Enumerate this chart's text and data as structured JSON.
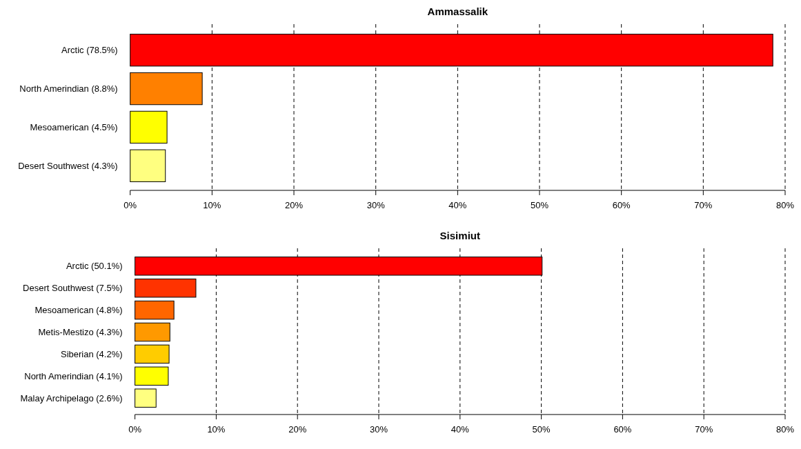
{
  "chart_data": [
    {
      "type": "bar",
      "orientation": "horizontal",
      "title": "Ammassalik",
      "categories": [
        "Arctic (78.5%)",
        "North Amerindian (8.8%)",
        "Mesoamerican (4.5%)",
        "Desert Southwest (4.3%)"
      ],
      "values": [
        78.5,
        8.8,
        4.5,
        4.3
      ],
      "colors": [
        "#ff0000",
        "#ff8000",
        "#ffff00",
        "#ffff80"
      ],
      "xlim": [
        0,
        80
      ],
      "xticks": [
        {
          "value": 0,
          "label": "0%"
        },
        {
          "value": 10,
          "label": "10%"
        },
        {
          "value": 20,
          "label": "20%"
        },
        {
          "value": 30,
          "label": "30%"
        },
        {
          "value": 40,
          "label": "40%"
        },
        {
          "value": 50,
          "label": "50%"
        },
        {
          "value": 60,
          "label": "60%"
        },
        {
          "value": 70,
          "label": "70%"
        },
        {
          "value": 80,
          "label": "80%"
        }
      ],
      "grid": "x"
    },
    {
      "type": "bar",
      "orientation": "horizontal",
      "title": "Sisimiut",
      "categories": [
        "Arctic (50.1%)",
        "Desert Southwest (7.5%)",
        "Mesoamerican (4.8%)",
        "Metis-Mestizo (4.3%)",
        "Siberian (4.2%)",
        "North Amerindian (4.1%)",
        "Malay Archipelago (2.6%)"
      ],
      "values": [
        50.1,
        7.5,
        4.8,
        4.3,
        4.2,
        4.1,
        2.6
      ],
      "colors": [
        "#ff0000",
        "#ff3300",
        "#ff6600",
        "#ff9900",
        "#ffcc00",
        "#ffff00",
        "#ffff80"
      ],
      "xlim": [
        0,
        80
      ],
      "xticks": [
        {
          "value": 0,
          "label": "0%"
        },
        {
          "value": 10,
          "label": "10%"
        },
        {
          "value": 20,
          "label": "20%"
        },
        {
          "value": 30,
          "label": "30%"
        },
        {
          "value": 40,
          "label": "40%"
        },
        {
          "value": 50,
          "label": "50%"
        },
        {
          "value": 60,
          "label": "60%"
        },
        {
          "value": 70,
          "label": "70%"
        },
        {
          "value": 80,
          "label": "80%"
        }
      ],
      "grid": "x"
    }
  ]
}
